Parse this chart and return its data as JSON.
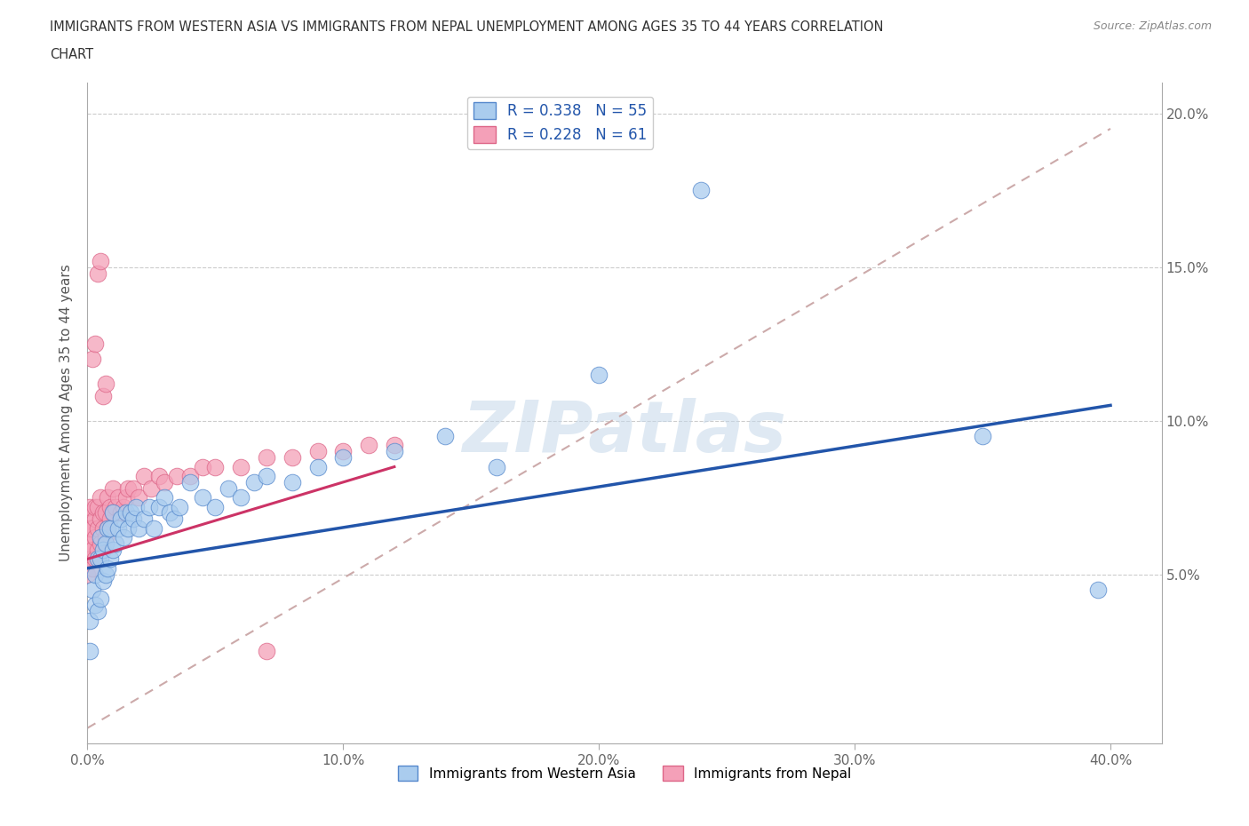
{
  "title_line1": "IMMIGRANTS FROM WESTERN ASIA VS IMMIGRANTS FROM NEPAL UNEMPLOYMENT AMONG AGES 35 TO 44 YEARS CORRELATION",
  "title_line2": "CHART",
  "source": "Source: ZipAtlas.com",
  "ylabel": "Unemployment Among Ages 35 to 44 years",
  "xlim": [
    0.0,
    0.42
  ],
  "ylim": [
    -0.005,
    0.21
  ],
  "xticks": [
    0.0,
    0.1,
    0.2,
    0.3,
    0.4
  ],
  "yticks": [
    0.0,
    0.05,
    0.1,
    0.15,
    0.2
  ],
  "xtick_labels": [
    "0.0%",
    "10.0%",
    "20.0%",
    "30.0%",
    "40.0%"
  ],
  "ytick_labels_left": [
    "",
    "",
    "",
    "",
    ""
  ],
  "ytick_labels_right": [
    "",
    "5.0%",
    "10.0%",
    "15.0%",
    "20.0%"
  ],
  "R_western": 0.338,
  "N_western": 55,
  "R_nepal": 0.228,
  "N_nepal": 61,
  "color_western": "#aaccee",
  "color_western_edge": "#5588cc",
  "color_nepal": "#f4a0b8",
  "color_nepal_edge": "#dd6688",
  "color_western_line": "#2255aa",
  "color_nepal_line": "#cc3366",
  "color_diag_line": "#ccaaaa",
  "western_x": [
    0.001,
    0.001,
    0.002,
    0.003,
    0.003,
    0.004,
    0.004,
    0.005,
    0.005,
    0.005,
    0.006,
    0.006,
    0.007,
    0.007,
    0.008,
    0.008,
    0.009,
    0.009,
    0.01,
    0.01,
    0.011,
    0.012,
    0.013,
    0.014,
    0.015,
    0.016,
    0.017,
    0.018,
    0.019,
    0.02,
    0.022,
    0.024,
    0.026,
    0.028,
    0.03,
    0.032,
    0.034,
    0.036,
    0.04,
    0.045,
    0.05,
    0.055,
    0.06,
    0.065,
    0.07,
    0.08,
    0.09,
    0.1,
    0.12,
    0.14,
    0.16,
    0.2,
    0.24,
    0.35,
    0.395
  ],
  "western_y": [
    0.025,
    0.035,
    0.045,
    0.04,
    0.05,
    0.038,
    0.055,
    0.042,
    0.055,
    0.062,
    0.048,
    0.058,
    0.05,
    0.06,
    0.052,
    0.065,
    0.055,
    0.065,
    0.058,
    0.07,
    0.06,
    0.065,
    0.068,
    0.062,
    0.07,
    0.065,
    0.07,
    0.068,
    0.072,
    0.065,
    0.068,
    0.072,
    0.065,
    0.072,
    0.075,
    0.07,
    0.068,
    0.072,
    0.08,
    0.075,
    0.072,
    0.078,
    0.075,
    0.08,
    0.082,
    0.08,
    0.085,
    0.088,
    0.09,
    0.095,
    0.085,
    0.115,
    0.175,
    0.095,
    0.045
  ],
  "nepal_x": [
    0.0,
    0.0,
    0.0,
    0.0,
    0.001,
    0.001,
    0.001,
    0.001,
    0.002,
    0.002,
    0.002,
    0.003,
    0.003,
    0.003,
    0.003,
    0.004,
    0.004,
    0.004,
    0.005,
    0.005,
    0.005,
    0.006,
    0.006,
    0.007,
    0.007,
    0.008,
    0.008,
    0.009,
    0.009,
    0.01,
    0.01,
    0.011,
    0.012,
    0.013,
    0.014,
    0.015,
    0.016,
    0.018,
    0.02,
    0.022,
    0.025,
    0.028,
    0.03,
    0.035,
    0.04,
    0.045,
    0.05,
    0.06,
    0.07,
    0.08,
    0.09,
    0.1,
    0.11,
    0.12,
    0.002,
    0.003,
    0.004,
    0.005,
    0.006,
    0.007,
    0.07
  ],
  "nepal_y": [
    0.05,
    0.06,
    0.065,
    0.07,
    0.055,
    0.06,
    0.065,
    0.072,
    0.052,
    0.058,
    0.065,
    0.055,
    0.062,
    0.068,
    0.072,
    0.058,
    0.065,
    0.072,
    0.06,
    0.068,
    0.075,
    0.065,
    0.07,
    0.062,
    0.07,
    0.065,
    0.075,
    0.068,
    0.072,
    0.07,
    0.078,
    0.072,
    0.075,
    0.07,
    0.072,
    0.075,
    0.078,
    0.078,
    0.075,
    0.082,
    0.078,
    0.082,
    0.08,
    0.082,
    0.082,
    0.085,
    0.085,
    0.085,
    0.088,
    0.088,
    0.09,
    0.09,
    0.092,
    0.092,
    0.12,
    0.125,
    0.148,
    0.152,
    0.108,
    0.112,
    0.025
  ],
  "western_line_x0": 0.0,
  "western_line_y0": 0.052,
  "western_line_x1": 0.4,
  "western_line_y1": 0.105,
  "nepal_line_x0": 0.0,
  "nepal_line_y0": 0.055,
  "nepal_line_x1": 0.12,
  "nepal_line_y1": 0.085,
  "diag_line_x0": 0.0,
  "diag_line_y0": 0.0,
  "diag_line_x1": 0.4,
  "diag_line_y1": 0.195,
  "background_color": "#ffffff",
  "watermark_text": "ZIPatlas",
  "watermark_color": "#c5d8ea"
}
